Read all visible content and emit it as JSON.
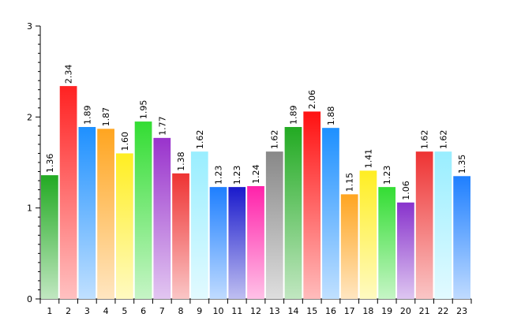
{
  "chart_data": {
    "type": "bar",
    "title": "",
    "xlabel": "",
    "ylabel": "",
    "ylim": [
      0,
      3
    ],
    "yticks": [
      "0",
      "1",
      "2",
      "3"
    ],
    "grid": false,
    "legend": "none",
    "categories": [
      "1",
      "2",
      "3",
      "4",
      "5",
      "6",
      "7",
      "8",
      "9",
      "10",
      "11",
      "12",
      "13",
      "14",
      "15",
      "16",
      "17",
      "18",
      "19",
      "20",
      "21",
      "22",
      "23"
    ],
    "values": [
      1.36,
      2.34,
      1.89,
      1.87,
      1.6,
      1.95,
      1.77,
      1.38,
      1.62,
      1.23,
      1.23,
      1.24,
      1.62,
      1.89,
      2.06,
      1.88,
      1.15,
      1.41,
      1.23,
      1.06,
      1.62,
      1.62,
      1.35
    ],
    "value_labels": [
      "1.36",
      "2.34",
      "1.89",
      "1.87",
      "1.60",
      "1.95",
      "1.77",
      "1.38",
      "1.62",
      "1.23",
      "1.23",
      "1.24",
      "1.62",
      "1.89",
      "2.06",
      "1.88",
      "1.15",
      "1.41",
      "1.23",
      "1.06",
      "1.62",
      "1.62",
      "1.35"
    ],
    "colors": [
      "#22aa22",
      "#ff2222",
      "#1e90ff",
      "#ffa520",
      "#ffee22",
      "#33dd33",
      "#9933cc",
      "#ee3333",
      "#99eeff",
      "#1e7fff",
      "#1a1acc",
      "#ff22aa",
      "#888888",
      "#22aa22",
      "#ff1111",
      "#1e90ff",
      "#ffa520",
      "#ffee22",
      "#33dd33",
      "#8833cc",
      "#ee3333",
      "#99eeff",
      "#1e7fff"
    ]
  }
}
